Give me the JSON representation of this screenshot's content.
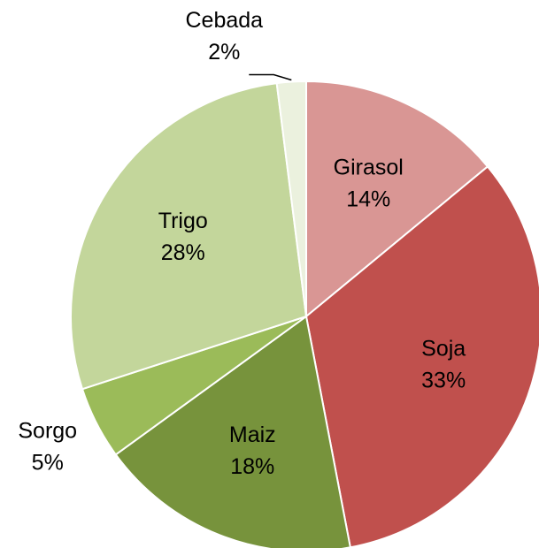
{
  "chart_data": {
    "type": "pie",
    "categories": [
      "Girasol",
      "Soja",
      "Maiz",
      "Sorgo",
      "Trigo",
      "Cebada"
    ],
    "values": [
      14,
      33,
      18,
      5,
      28,
      2
    ],
    "value_labels": [
      "14%",
      "33%",
      "18%",
      "5%",
      "28%",
      "2%"
    ],
    "colors": [
      "#d99694",
      "#c0504d",
      "#77933c",
      "#9bbb59",
      "#c3d69b",
      "#ebf1de"
    ]
  }
}
